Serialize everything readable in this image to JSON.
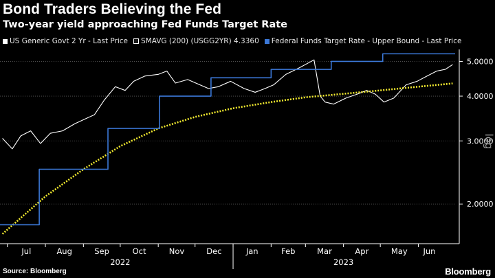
{
  "header": {
    "title": "Bond Traders Believing the Fed",
    "subtitle": "Two-year yield approaching Fed Funds Target Rate"
  },
  "legend": [
    {
      "label": "US Generic Govt 2 Yr - Last Price",
      "color": "#ffffff"
    },
    {
      "label": "SMAVG (200) (USGG2YR) 4.3360",
      "color": "#1a1a1a"
    },
    {
      "label": "Federal Funds Target Rate - Upper Bound - Last Price",
      "color": "#3b78d8"
    }
  ],
  "footer": {
    "source": "Source: Bloomberg",
    "brand": "Bloomberg"
  },
  "chart_data": {
    "type": "line",
    "scale": "log",
    "xlabel": "",
    "ylabel": "log",
    "ylim": [
      1.55,
      5.4
    ],
    "yticks": [
      {
        "value": 5.0,
        "label": "5.0000"
      },
      {
        "value": 4.0,
        "label": "4.0000"
      },
      {
        "value": 3.0,
        "label": "3.0000"
      },
      {
        "value": 2.0,
        "label": "2.0000"
      }
    ],
    "xlim": [
      "2022-06-25",
      "2023-07-01"
    ],
    "month_ticks": [
      {
        "date": "2022-07-01",
        "label": "Jul"
      },
      {
        "date": "2022-08-01",
        "label": "Aug"
      },
      {
        "date": "2022-09-01",
        "label": "Sep"
      },
      {
        "date": "2022-10-01",
        "label": "Oct"
      },
      {
        "date": "2022-11-01",
        "label": "Nov"
      },
      {
        "date": "2022-12-01",
        "label": "Dec"
      },
      {
        "date": "2023-01-01",
        "label": "Jan"
      },
      {
        "date": "2023-02-01",
        "label": "Feb"
      },
      {
        "date": "2023-03-01",
        "label": "Mar"
      },
      {
        "date": "2023-04-01",
        "label": "Apr"
      },
      {
        "date": "2023-05-01",
        "label": "May"
      },
      {
        "date": "2023-06-01",
        "label": "Jun"
      }
    ],
    "year_labels": [
      {
        "date": "2022-10-01",
        "label": "2022"
      },
      {
        "date": "2023-04-01",
        "label": "2023"
      }
    ],
    "series": [
      {
        "name": "US Generic Govt 2 Yr - Last Price",
        "color": "#ffffff",
        "style": "solid",
        "points": [
          [
            "2022-06-27",
            3.05
          ],
          [
            "2022-07-05",
            2.85
          ],
          [
            "2022-07-12",
            3.1
          ],
          [
            "2022-07-20",
            3.2
          ],
          [
            "2022-07-28",
            2.95
          ],
          [
            "2022-08-05",
            3.15
          ],
          [
            "2022-08-15",
            3.2
          ],
          [
            "2022-08-25",
            3.35
          ],
          [
            "2022-09-02",
            3.45
          ],
          [
            "2022-09-10",
            3.55
          ],
          [
            "2022-09-18",
            3.9
          ],
          [
            "2022-09-27",
            4.25
          ],
          [
            "2022-10-05",
            4.15
          ],
          [
            "2022-10-12",
            4.4
          ],
          [
            "2022-10-21",
            4.55
          ],
          [
            "2022-11-01",
            4.6
          ],
          [
            "2022-11-08",
            4.7
          ],
          [
            "2022-11-15",
            4.35
          ],
          [
            "2022-11-25",
            4.45
          ],
          [
            "2022-12-05",
            4.3
          ],
          [
            "2022-12-12",
            4.2
          ],
          [
            "2022-12-20",
            4.25
          ],
          [
            "2022-12-30",
            4.4
          ],
          [
            "2023-01-10",
            4.2
          ],
          [
            "2023-01-19",
            4.1
          ],
          [
            "2023-01-27",
            4.2
          ],
          [
            "2023-02-03",
            4.3
          ],
          [
            "2023-02-13",
            4.6
          ],
          [
            "2023-02-24",
            4.8
          ],
          [
            "2023-03-08",
            5.05
          ],
          [
            "2023-03-10",
            4.6
          ],
          [
            "2023-03-13",
            4.0
          ],
          [
            "2023-03-17",
            3.85
          ],
          [
            "2023-03-24",
            3.8
          ],
          [
            "2023-04-03",
            3.95
          ],
          [
            "2023-04-12",
            4.05
          ],
          [
            "2023-04-20",
            4.15
          ],
          [
            "2023-04-27",
            4.05
          ],
          [
            "2023-05-04",
            3.85
          ],
          [
            "2023-05-12",
            3.95
          ],
          [
            "2023-05-22",
            4.3
          ],
          [
            "2023-05-31",
            4.4
          ],
          [
            "2023-06-08",
            4.55
          ],
          [
            "2023-06-16",
            4.7
          ],
          [
            "2023-06-23",
            4.75
          ],
          [
            "2023-06-29",
            4.9
          ]
        ]
      },
      {
        "name": "SMAVG (200) (USGG2YR) 4.3360",
        "color": "#f2ea2f",
        "style": "dotted",
        "points": [
          [
            "2022-06-27",
            1.65
          ],
          [
            "2022-08-01",
            2.1
          ],
          [
            "2022-09-01",
            2.5
          ],
          [
            "2022-10-01",
            2.9
          ],
          [
            "2022-11-01",
            3.25
          ],
          [
            "2022-12-01",
            3.5
          ],
          [
            "2023-01-01",
            3.7
          ],
          [
            "2023-02-01",
            3.85
          ],
          [
            "2023-03-01",
            3.97
          ],
          [
            "2023-04-01",
            4.06
          ],
          [
            "2023-05-01",
            4.15
          ],
          [
            "2023-06-01",
            4.25
          ],
          [
            "2023-06-29",
            4.34
          ]
        ]
      },
      {
        "name": "Federal Funds Target Rate - Upper Bound - Last Price",
        "color": "#3b78d8",
        "style": "step",
        "points": [
          [
            "2022-06-25",
            1.75
          ],
          [
            "2022-07-27",
            2.5
          ],
          [
            "2022-09-21",
            3.25
          ],
          [
            "2022-11-02",
            4.0
          ],
          [
            "2022-12-14",
            4.5
          ],
          [
            "2023-02-01",
            4.75
          ],
          [
            "2023-03-22",
            5.0
          ],
          [
            "2023-05-03",
            5.25
          ],
          [
            "2023-07-01",
            5.25
          ]
        ]
      }
    ]
  }
}
